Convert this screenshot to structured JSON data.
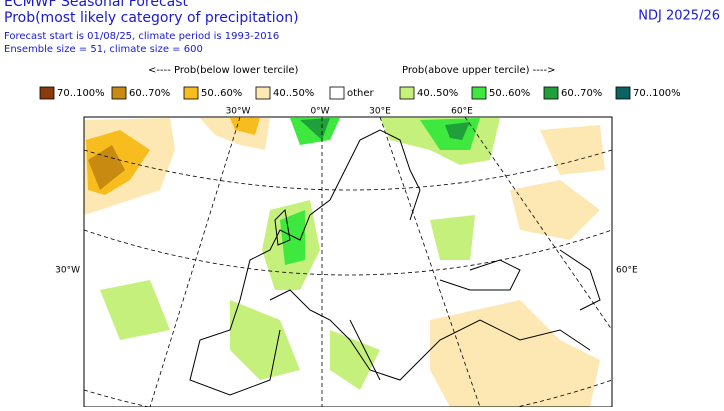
{
  "header": {
    "source": "ECMWF Seasonal Forecast",
    "title": "Prob(most likely category of precipitation)",
    "forecast_info": "Forecast start is 01/08/25, climate period is 1993-2016",
    "ensemble_info": "Ensemble size = 51, climate size = 600",
    "period": "NDJ 2025/26"
  },
  "legend": {
    "below_header": "<---- Prob(below lower tercile)",
    "above_header": "Prob(above upper tercile) ---->",
    "items": [
      {
        "label": "70..100%",
        "color": "#8b3a0a"
      },
      {
        "label": "60..70%",
        "color": "#c88a10"
      },
      {
        "label": "50..60%",
        "color": "#f7bd1e"
      },
      {
        "label": "40..50%",
        "color": "#fde8b4"
      },
      {
        "label": "other",
        "color": "#ffffff"
      },
      {
        "label": "40..50%",
        "color": "#c6f07c"
      },
      {
        "label": "50..60%",
        "color": "#3ee83e"
      },
      {
        "label": "60..70%",
        "color": "#1fa03a"
      },
      {
        "label": "70..100%",
        "color": "#0a6464"
      }
    ]
  },
  "graticule_labels": {
    "top": [
      "30°W",
      "0°W",
      "30°E",
      "60°E"
    ],
    "left": "30°W",
    "right": "60°E"
  }
}
